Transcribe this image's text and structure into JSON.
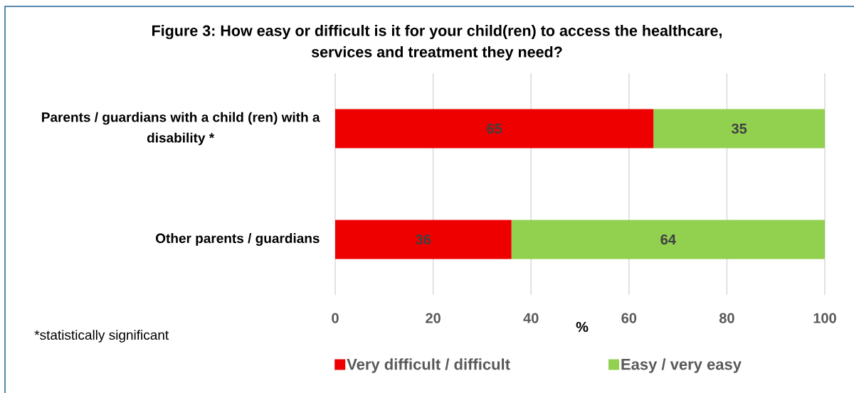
{
  "chart_data": {
    "type": "bar",
    "orientation": "horizontal",
    "stacked": true,
    "title": "Figure 3: How easy or difficult is it for your child(ren) to access the healthcare, services and treatment they need?",
    "xlabel": "%",
    "categories": [
      "Parents / guardians with a child (ren) with a disability *",
      "Other parents / guardians"
    ],
    "series": [
      {
        "name": "Very difficult / difficult",
        "color": "#ee0000",
        "values": [
          65,
          36
        ]
      },
      {
        "name": "Easy / very easy",
        "color": "#92d050",
        "values": [
          35,
          64
        ]
      }
    ],
    "xlim": [
      0,
      100
    ],
    "xticks": [
      0,
      20,
      40,
      60,
      80,
      100
    ],
    "grid": "x",
    "legend": "bottom",
    "data_labels": true,
    "annotations": [
      "*statistically significant"
    ]
  }
}
